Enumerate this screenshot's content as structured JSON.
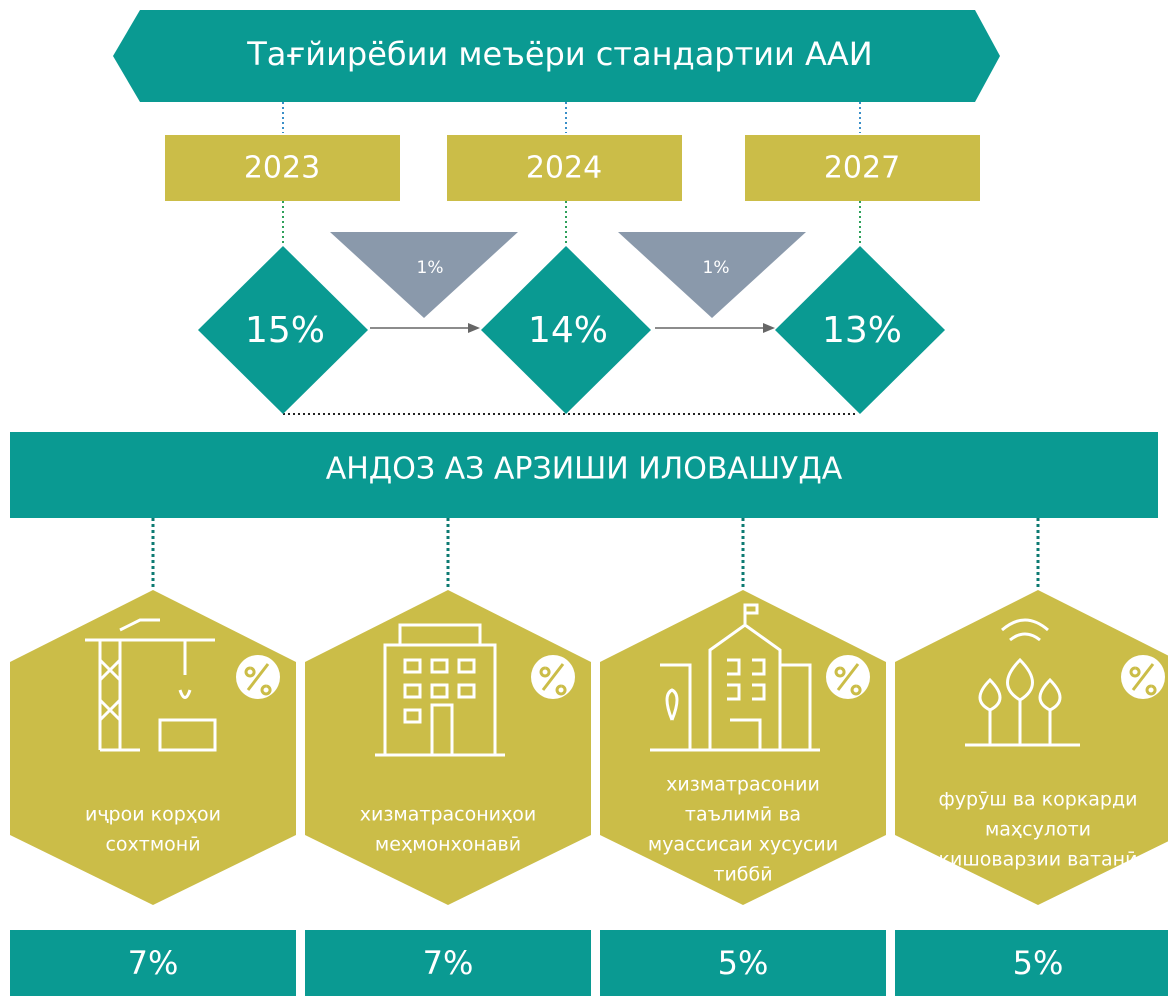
{
  "title": "Тағйирёбии меъёри стандартии ААИ",
  "years": [
    {
      "year": "2023",
      "rate": "15%"
    },
    {
      "year": "2024",
      "rate": "14%"
    },
    {
      "year": "2027",
      "rate": "13%"
    }
  ],
  "reductions": [
    "1%",
    "1%"
  ],
  "subtitle": "АНДОЗ АЗ АРЗИШИ ИЛОВАШУДА",
  "sectors": [
    {
      "label": [
        "иҷрои корҳои",
        "сохтмонӣ"
      ],
      "rate": "7%"
    },
    {
      "label": [
        "хизматрасониҳои",
        "меҳмонхонавӣ"
      ],
      "rate": "7%"
    },
    {
      "label": [
        "хизматрасонии",
        "таълимӣ ва",
        "муассисаи хусусии",
        "тиббӣ"
      ],
      "rate": "5%"
    },
    {
      "label": [
        "фурӯш ва  коркарди",
        "маҳсулоти",
        "кишоварзии ватанӣ"
      ],
      "rate": "5%"
    }
  ]
}
